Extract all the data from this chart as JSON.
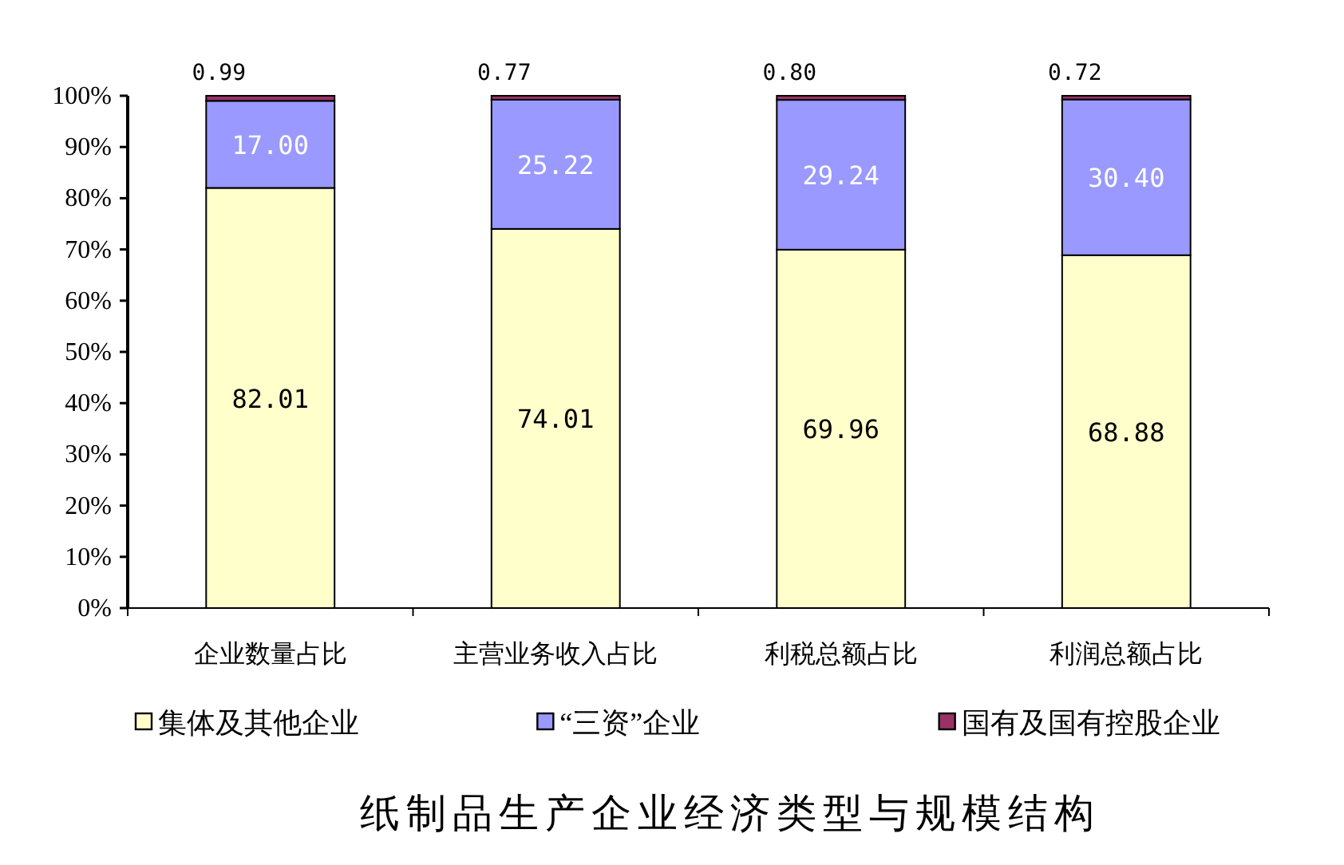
{
  "chart_data": {
    "type": "bar",
    "stacked": true,
    "title": "纸制品生产企业经济类型与规模结构",
    "categories": [
      "企业数量占比",
      "主营业务收入占比",
      "利税总额占比",
      "利润总额占比"
    ],
    "series": [
      {
        "name": "集体及其他企业",
        "color": "#ffffcc",
        "values": [
          82.01,
          74.01,
          69.96,
          68.88
        ],
        "value_labels": [
          "82.01",
          "74.01",
          "69.96",
          "68.88"
        ]
      },
      {
        "name": "“三资”企业",
        "color": "#9999ff",
        "values": [
          17.0,
          25.22,
          29.24,
          30.4
        ],
        "value_labels": [
          "17.00",
          "25.22",
          "29.24",
          "30.40"
        ]
      },
      {
        "name": "国有及国有控股企业",
        "color": "#993366",
        "values": [
          0.99,
          0.77,
          0.8,
          0.72
        ],
        "value_labels": [
          "0.99",
          "0.77",
          "0.80",
          "0.72"
        ]
      }
    ],
    "ylim": [
      0,
      100
    ],
    "yticks": [
      {
        "value": 0,
        "label": "0%"
      },
      {
        "value": 10,
        "label": "10%"
      },
      {
        "value": 20,
        "label": "20%"
      },
      {
        "value": 30,
        "label": "30%"
      },
      {
        "value": 40,
        "label": "40%"
      },
      {
        "value": 50,
        "label": "50%"
      },
      {
        "value": 60,
        "label": "60%"
      },
      {
        "value": 70,
        "label": "70%"
      },
      {
        "value": 80,
        "label": "80%"
      },
      {
        "value": 90,
        "label": "90%"
      },
      {
        "value": 100,
        "label": "100%"
      }
    ],
    "legend": "bottom"
  }
}
